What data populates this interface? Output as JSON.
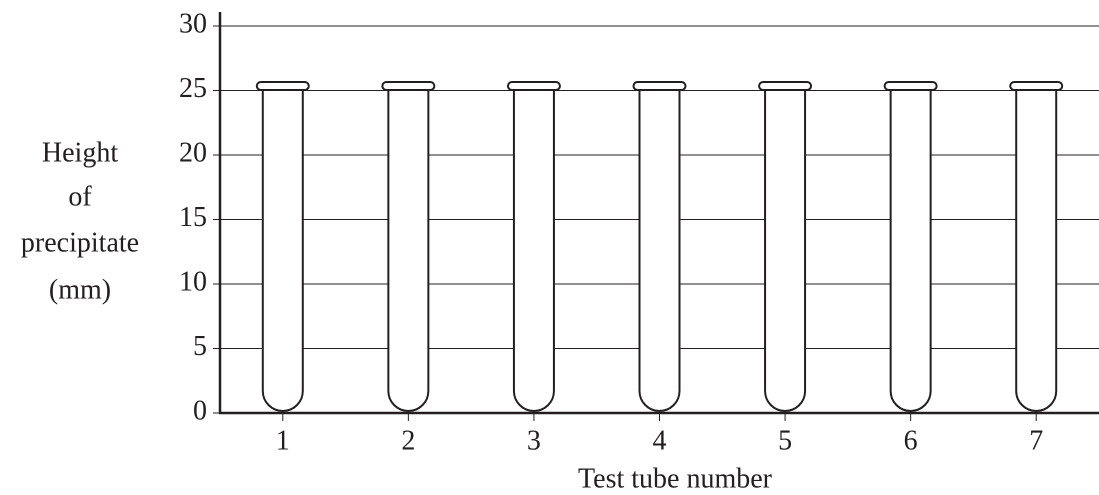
{
  "chart_data": {
    "type": "tube-grid",
    "ylabel": [
      "Height",
      "of",
      "precipitate",
      "(mm)"
    ],
    "xlabel": "Test tube number",
    "categories": [
      "1",
      "2",
      "3",
      "4",
      "5",
      "6",
      "7"
    ],
    "ylim": [
      0,
      30
    ],
    "yticks": [
      0,
      5,
      10,
      15,
      20,
      25,
      30
    ],
    "grid": true
  }
}
